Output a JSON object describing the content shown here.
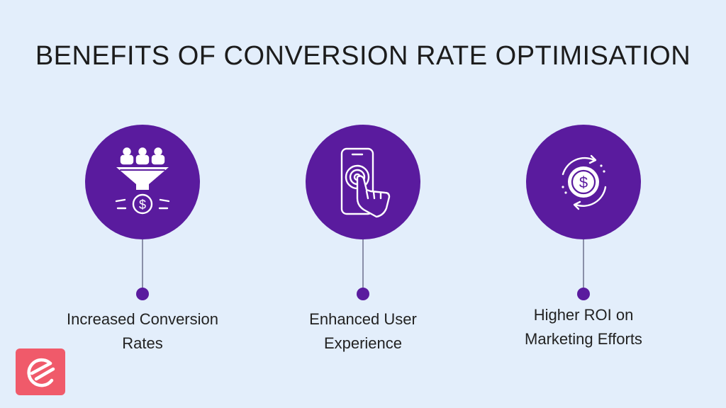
{
  "title": "BENEFITS OF CONVERSION RATE OPTIMISATION",
  "accent_color": "#5a1b9e",
  "background_color": "#e3eefb",
  "benefits": [
    {
      "line1": "Increased Conversion",
      "line2": "Rates",
      "icon": "funnel-dollar-icon"
    },
    {
      "line1": "Enhanced User",
      "line2": "Experience",
      "icon": "phone-touch-icon"
    },
    {
      "line1": "Higher ROI on",
      "line2": "Marketing Efforts",
      "icon": "dollar-cycle-icon"
    }
  ],
  "logo": {
    "icon": "brand-logo-icon",
    "color": "#f05a6a"
  }
}
